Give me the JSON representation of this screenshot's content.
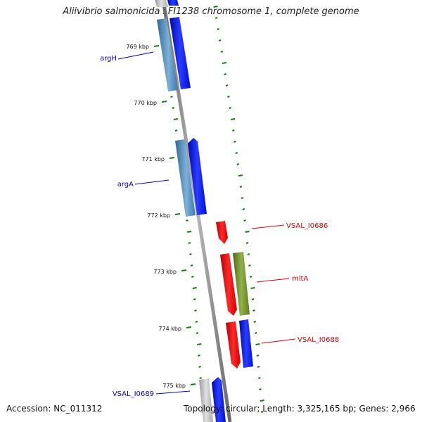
{
  "map": {
    "title": "Aliivibrio salmonicida LFI1238 chromosome 1, complete genome",
    "accession": "Accession: NC_011312",
    "summary": "Topology: circular; Length: 3,325,165 bp; Genes: 2,966",
    "ruler_labels": [
      "769 kbp",
      "770 kbp",
      "771 kbp",
      "772 kbp",
      "773 kbp",
      "774 kbp",
      "775 kbp"
    ],
    "gene_labels": [
      {
        "text": "argH",
        "color": "#0000cc"
      },
      {
        "text": "argA",
        "color": "#0000cc"
      },
      {
        "text": "VSAL_I0686",
        "color": "#dd0000"
      },
      {
        "text": "mltA",
        "color": "#dd0000"
      },
      {
        "text": "VSAL_I0688",
        "color": "#dd0000"
      },
      {
        "text": "VSAL_I0689",
        "color": "#0000cc"
      }
    ],
    "colors": {
      "backbone": "#8f8f8f",
      "ticks": "#1a7a1a",
      "gene_steelblue": "#4a86b8",
      "gene_blue": "#0a14f0",
      "gene_red": "#ee0a0a",
      "gene_olive": "#6e8c2a",
      "gene_grey": "#b8b8b8"
    }
  }
}
